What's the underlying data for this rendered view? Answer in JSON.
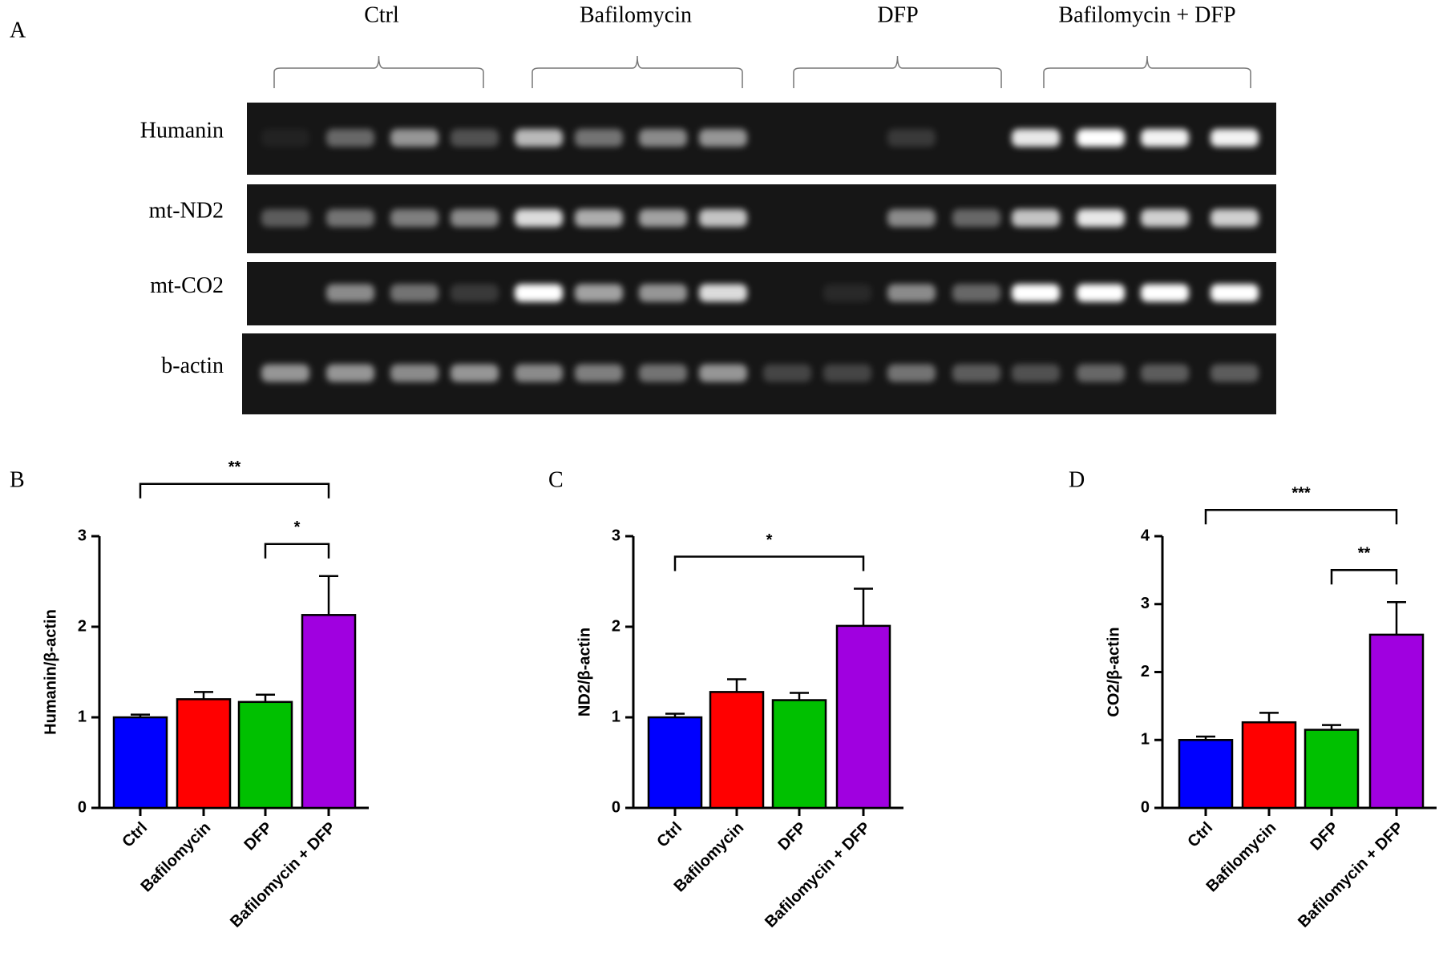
{
  "panel_labels": [
    "A",
    "B",
    "C",
    "D"
  ],
  "gel": {
    "groups": [
      "Ctrl",
      "Bafilomycin",
      "DFP",
      "Bafilomycin + DFP"
    ],
    "rows": [
      "Humanin",
      "mt-ND2",
      "mt-CO2",
      "b-actin"
    ]
  },
  "chart_data": [
    {
      "type": "bar",
      "ylabel": "Humanin/β-actin",
      "categories": [
        "Ctrl",
        "Bafilomycin",
        "DFP",
        "Bafilomycin + DFP"
      ],
      "values": [
        1.0,
        1.2,
        1.17,
        2.13
      ],
      "errors": [
        0.03,
        0.08,
        0.08,
        0.43
      ],
      "colors": [
        "#0000ff",
        "#ff0000",
        "#00c000",
        "#a000e0"
      ],
      "ylim": [
        0,
        3
      ],
      "yticks": [
        0,
        1,
        2,
        3
      ],
      "significance": [
        {
          "from": 2,
          "to": 3,
          "label": "*"
        },
        {
          "from": 0,
          "to": 3,
          "label": "**"
        }
      ]
    },
    {
      "type": "bar",
      "ylabel": "ND2/β-actin",
      "categories": [
        "Ctrl",
        "Bafilomycin",
        "DFP",
        "Bafilomycin + DFP"
      ],
      "values": [
        1.0,
        1.28,
        1.19,
        2.01
      ],
      "errors": [
        0.04,
        0.14,
        0.08,
        0.41
      ],
      "colors": [
        "#0000ff",
        "#ff0000",
        "#00c000",
        "#a000e0"
      ],
      "ylim": [
        0,
        3
      ],
      "yticks": [
        0,
        1,
        2,
        3
      ],
      "significance": [
        {
          "from": 0,
          "to": 3,
          "label": "*"
        }
      ]
    },
    {
      "type": "bar",
      "ylabel": "CO2/β-actin",
      "categories": [
        "Ctrl",
        "Bafilomycin",
        "DFP",
        "Bafilomycin + DFP"
      ],
      "values": [
        1.0,
        1.26,
        1.15,
        2.55
      ],
      "errors": [
        0.05,
        0.14,
        0.07,
        0.48
      ],
      "colors": [
        "#0000ff",
        "#ff0000",
        "#00c000",
        "#a000e0"
      ],
      "ylim": [
        0,
        4
      ],
      "yticks": [
        0,
        1,
        2,
        3,
        4
      ],
      "significance": [
        {
          "from": 2,
          "to": 3,
          "label": "**"
        },
        {
          "from": 0,
          "to": 3,
          "label": "***"
        }
      ]
    }
  ]
}
